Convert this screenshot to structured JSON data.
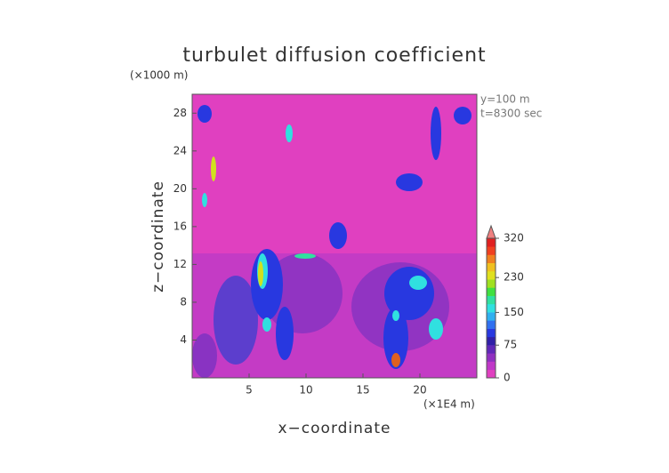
{
  "chart_data": {
    "type": "contour",
    "title": "turbulet diffusion coefficient",
    "x_label": "x−coordinate",
    "y_label": "z−coordinate",
    "x_unit": "(×1E4 m)",
    "y_unit": "(×1000 m)",
    "annotations": [
      "y=100 m",
      "t=8300 sec"
    ],
    "xlim": [
      0,
      25
    ],
    "xticks": [
      5,
      10,
      15,
      20
    ],
    "ylim": [
      0,
      30
    ],
    "yticks": [
      4,
      8,
      12,
      16,
      20,
      24,
      28
    ],
    "colorbar": {
      "lim": [
        0,
        320
      ],
      "ticks": [
        0,
        75,
        150,
        230,
        320
      ],
      "colors": [
        "#e040c0",
        "#c038c8",
        "#9030c0",
        "#6028b8",
        "#3020a8",
        "#2838e0",
        "#3070f0",
        "#30b0f0",
        "#30e0e0",
        "#30e0a0",
        "#40e040",
        "#a0e020",
        "#e0e020",
        "#f0c020",
        "#f08020",
        "#f04020",
        "#e02020"
      ]
    }
  }
}
